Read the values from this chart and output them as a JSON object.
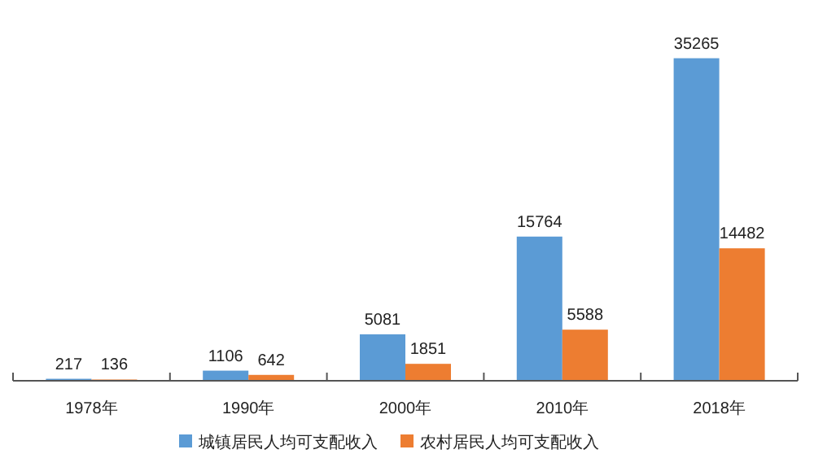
{
  "chart_data": {
    "type": "bar",
    "categories": [
      "1978年",
      "1990年",
      "2000年",
      "2010年",
      "2018年"
    ],
    "series": [
      {
        "name": "城镇居民人均可支配收入",
        "color": "#5b9bd5",
        "values": [
          217,
          1106,
          5081,
          15764,
          35265
        ]
      },
      {
        "name": "农村居民人均可支配收入",
        "color": "#ed7d31",
        "values": [
          136,
          642,
          1851,
          5588,
          14482
        ]
      }
    ],
    "data_labels": true,
    "legend": "bottom",
    "grid": false
  }
}
